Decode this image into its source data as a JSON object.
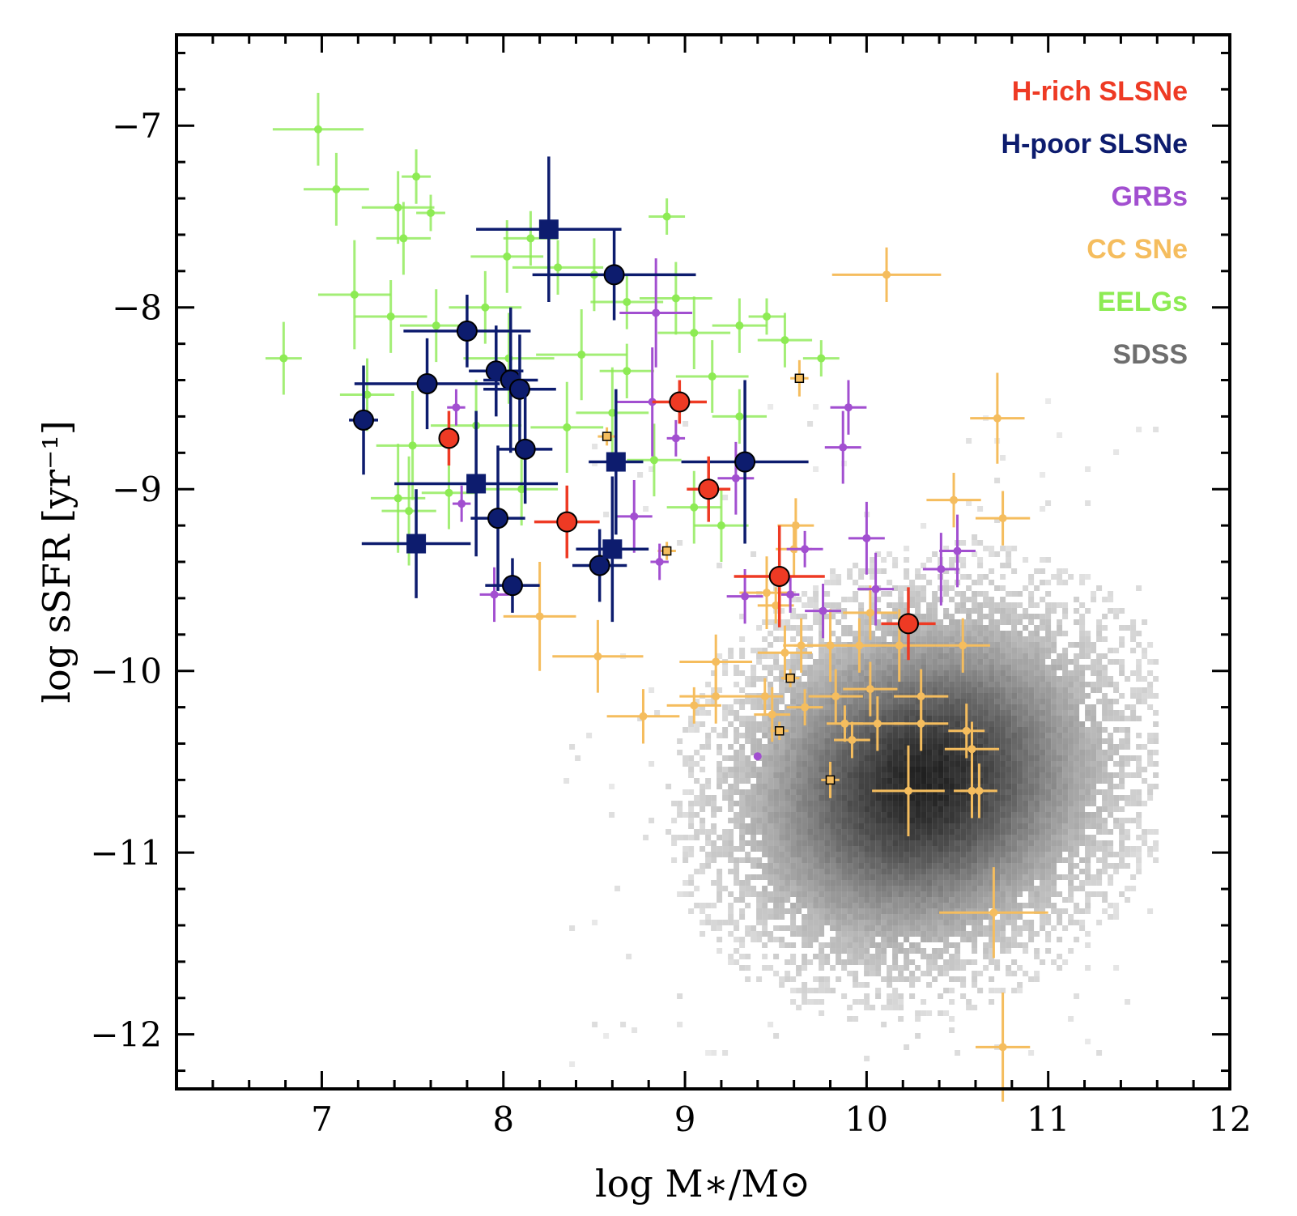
{
  "chart_data": {
    "type": "scatter",
    "xlabel": "log M∗/M⊙",
    "ylabel": "log sSFR [yr⁻¹]",
    "xlim": [
      6.2,
      12.0
    ],
    "ylim": [
      -12.3,
      -6.5
    ],
    "xticks": [
      "7",
      "8",
      "9",
      "10",
      "11",
      "12"
    ],
    "yticks": [
      "−7",
      "−8",
      "−9",
      "−10",
      "−11",
      "−12"
    ],
    "xtick_values": [
      7,
      8,
      9,
      10,
      11,
      12
    ],
    "ytick_values": [
      -7,
      -8,
      -9,
      -10,
      -11,
      -12
    ],
    "grid": false,
    "legend_placement": "top-right",
    "legend": [
      "H-rich SLSNe",
      "H-poor SLSNe",
      "GRBs",
      "CC SNe",
      "EELGs",
      "SDSS"
    ],
    "colors": {
      "H-rich SLSNe": "#ee3a24",
      "H-poor SLSNe": "#0d1c6e",
      "GRBs": "#a24fd0",
      "CC SNe": "#f5bd5e",
      "EELGs": "#8deb54",
      "SDSS": "#6e6e6e"
    },
    "sdss_density": {
      "description_values": "2D density of SDSS galaxies",
      "center_x": 10.3,
      "center_y": -10.6,
      "spread_x": 0.55,
      "spread_y": 0.55,
      "x_range": [
        8.3,
        11.6
      ],
      "y_range": [
        -12.2,
        -8.5
      ]
    },
    "series": [
      {
        "name": "H-rich SLSNe",
        "marker": "circle",
        "points": [
          [
            7.7,
            -8.72,
            0.05,
            0.15
          ],
          [
            8.35,
            -9.18,
            0.18,
            0.2
          ],
          [
            8.97,
            -8.52,
            0.15,
            0.12
          ],
          [
            9.13,
            -9.0,
            0.12,
            0.18
          ],
          [
            9.52,
            -9.48,
            0.25,
            0.28
          ],
          [
            10.23,
            -9.74,
            0.15,
            0.2
          ]
        ]
      },
      {
        "name": "H-poor SLSNe",
        "marker": "circle",
        "points": [
          [
            7.23,
            -8.62,
            0.08,
            0.3
          ],
          [
            7.58,
            -8.42,
            0.4,
            0.25
          ],
          [
            7.8,
            -8.13,
            0.35,
            0.2
          ],
          [
            7.96,
            -8.35,
            0.15,
            0.25
          ],
          [
            8.04,
            -8.4,
            0.15,
            0.4
          ],
          [
            8.09,
            -8.45,
            0.2,
            0.3
          ],
          [
            8.12,
            -8.78,
            0.15,
            0.3
          ],
          [
            7.97,
            -9.16,
            0.15,
            0.4
          ],
          [
            8.05,
            -9.53,
            0.15,
            0.15
          ],
          [
            8.53,
            -9.42,
            0.15,
            0.2
          ],
          [
            8.61,
            -7.82,
            0.45,
            0.25
          ],
          [
            9.33,
            -8.85,
            0.35,
            0.45
          ]
        ]
      },
      {
        "name": "H-poor SLSNe (squares)",
        "marker": "square",
        "points": [
          [
            8.25,
            -7.57,
            0.4,
            0.4
          ],
          [
            7.52,
            -9.3,
            0.3,
            0.3
          ],
          [
            7.85,
            -8.97,
            0.45,
            0.4
          ],
          [
            8.62,
            -8.85,
            0.15,
            0.4
          ],
          [
            8.6,
            -9.33,
            0.2,
            0.4
          ]
        ]
      },
      {
        "name": "GRBs",
        "marker": "circle",
        "points": [
          [
            7.74,
            -8.55,
            0.05,
            0.1
          ],
          [
            7.77,
            -9.08,
            0.05,
            0.1
          ],
          [
            7.95,
            -9.58,
            0.08,
            0.15
          ],
          [
            8.72,
            -9.15,
            0.1,
            0.2
          ],
          [
            8.82,
            -8.52,
            0.2,
            0.3
          ],
          [
            8.84,
            -8.03,
            0.2,
            0.3
          ],
          [
            8.86,
            -9.4,
            0.05,
            0.1
          ],
          [
            8.95,
            -8.72,
            0.05,
            0.1
          ],
          [
            9.28,
            -8.94,
            0.1,
            0.2
          ],
          [
            9.33,
            -9.59,
            0.1,
            0.15
          ],
          [
            9.4,
            -10.47,
            0.0,
            0.0
          ],
          [
            9.58,
            -9.58,
            0.05,
            0.1
          ],
          [
            9.66,
            -9.33,
            0.1,
            0.1
          ],
          [
            9.76,
            -9.67,
            0.1,
            0.15
          ],
          [
            9.9,
            -8.55,
            0.1,
            0.15
          ],
          [
            10.0,
            -9.27,
            0.1,
            0.2
          ],
          [
            10.05,
            -9.55,
            0.1,
            0.2
          ],
          [
            10.41,
            -9.44,
            0.1,
            0.2
          ],
          [
            10.5,
            -9.34,
            0.1,
            0.2
          ],
          [
            9.87,
            -8.77,
            0.1,
            0.2
          ]
        ]
      },
      {
        "name": "CC SNe",
        "marker": "circle",
        "points": [
          [
            10.11,
            -7.82,
            0.3,
            0.15
          ],
          [
            10.72,
            -8.61,
            0.15,
            0.25
          ],
          [
            10.48,
            -9.06,
            0.15,
            0.15
          ],
          [
            10.75,
            -9.16,
            0.15,
            0.15
          ],
          [
            8.2,
            -9.7,
            0.2,
            0.3
          ],
          [
            8.52,
            -9.92,
            0.25,
            0.2
          ],
          [
            8.77,
            -10.25,
            0.2,
            0.15
          ],
          [
            9.17,
            -9.95,
            0.2,
            0.15
          ],
          [
            9.17,
            -10.14,
            0.2,
            0.15
          ],
          [
            9.45,
            -9.57,
            0.15,
            0.2
          ],
          [
            9.5,
            -9.64,
            0.1,
            0.1
          ],
          [
            9.55,
            -9.9,
            0.15,
            0.15
          ],
          [
            9.6,
            -9.33,
            0.1,
            0.15
          ],
          [
            9.61,
            -9.2,
            0.1,
            0.15
          ],
          [
            9.64,
            -9.86,
            0.1,
            0.15
          ],
          [
            9.66,
            -10.2,
            0.1,
            0.1
          ],
          [
            9.8,
            -9.86,
            0.2,
            0.2
          ],
          [
            9.83,
            -10.14,
            0.15,
            0.15
          ],
          [
            9.88,
            -10.29,
            0.1,
            0.1
          ],
          [
            9.92,
            -10.38,
            0.1,
            0.1
          ],
          [
            9.96,
            -9.86,
            0.1,
            0.15
          ],
          [
            10.02,
            -10.1,
            0.15,
            0.15
          ],
          [
            10.02,
            -9.68,
            0.15,
            0.15
          ],
          [
            10.06,
            -10.29,
            0.15,
            0.15
          ],
          [
            10.18,
            -9.86,
            0.2,
            0.2
          ],
          [
            10.3,
            -10.14,
            0.15,
            0.15
          ],
          [
            10.3,
            -10.29,
            0.15,
            0.15
          ],
          [
            10.23,
            -10.66,
            0.2,
            0.25
          ],
          [
            10.53,
            -9.86,
            0.15,
            0.15
          ],
          [
            10.55,
            -10.33,
            0.1,
            0.15
          ],
          [
            10.58,
            -10.43,
            0.15,
            0.15
          ],
          [
            10.58,
            -10.66,
            0.1,
            0.15
          ],
          [
            10.62,
            -10.66,
            0.1,
            0.15
          ],
          [
            10.7,
            -11.33,
            0.3,
            0.25
          ],
          [
            10.75,
            -12.07,
            0.15,
            0.3
          ],
          [
            9.05,
            -10.19,
            0.15,
            0.1
          ],
          [
            9.44,
            -10.14,
            0.1,
            0.1
          ],
          [
            9.48,
            -10.24,
            0.1,
            0.15
          ]
        ]
      },
      {
        "name": "CC SNe (squares)",
        "marker": "square",
        "points": [
          [
            8.57,
            -8.71,
            0.05,
            0.05
          ],
          [
            8.9,
            -9.34,
            0.05,
            0.05
          ],
          [
            9.52,
            -10.33,
            0.05,
            0.05
          ],
          [
            9.58,
            -10.04,
            0.05,
            0.05
          ],
          [
            9.63,
            -8.39,
            0.05,
            0.1
          ],
          [
            9.8,
            -10.6,
            0.05,
            0.1
          ]
        ]
      },
      {
        "name": "EELGs",
        "marker": "circle",
        "points": [
          [
            6.98,
            -7.02,
            0.25,
            0.2
          ],
          [
            7.08,
            -7.35,
            0.18,
            0.2
          ],
          [
            6.79,
            -8.28,
            0.1,
            0.2
          ],
          [
            7.18,
            -7.93,
            0.2,
            0.3
          ],
          [
            7.42,
            -7.45,
            0.2,
            0.2
          ],
          [
            7.52,
            -7.28,
            0.08,
            0.15
          ],
          [
            7.45,
            -7.62,
            0.15,
            0.2
          ],
          [
            7.6,
            -7.48,
            0.08,
            0.1
          ],
          [
            7.38,
            -8.05,
            0.2,
            0.2
          ],
          [
            7.63,
            -8.1,
            0.2,
            0.2
          ],
          [
            7.9,
            -8.0,
            0.2,
            0.2
          ],
          [
            7.5,
            -8.76,
            0.2,
            0.3
          ],
          [
            7.42,
            -9.05,
            0.15,
            0.3
          ],
          [
            7.48,
            -9.12,
            0.15,
            0.3
          ],
          [
            7.7,
            -9.02,
            0.15,
            0.2
          ],
          [
            8.02,
            -7.72,
            0.2,
            0.2
          ],
          [
            8.15,
            -7.62,
            0.15,
            0.15
          ],
          [
            8.3,
            -7.78,
            0.25,
            0.15
          ],
          [
            8.5,
            -7.82,
            0.2,
            0.2
          ],
          [
            8.43,
            -8.26,
            0.25,
            0.25
          ],
          [
            8.68,
            -7.97,
            0.2,
            0.15
          ],
          [
            8.9,
            -7.5,
            0.1,
            0.1
          ],
          [
            8.95,
            -7.95,
            0.2,
            0.2
          ],
          [
            9.05,
            -8.14,
            0.2,
            0.2
          ],
          [
            9.15,
            -8.38,
            0.2,
            0.2
          ],
          [
            9.3,
            -8.1,
            0.15,
            0.15
          ],
          [
            9.45,
            -8.05,
            0.1,
            0.1
          ],
          [
            9.55,
            -8.18,
            0.15,
            0.15
          ],
          [
            9.75,
            -8.28,
            0.1,
            0.1
          ],
          [
            8.35,
            -8.66,
            0.2,
            0.25
          ],
          [
            8.6,
            -8.58,
            0.2,
            0.25
          ],
          [
            8.83,
            -8.84,
            0.15,
            0.2
          ],
          [
            9.05,
            -9.1,
            0.15,
            0.2
          ],
          [
            8.1,
            -9.0,
            0.2,
            0.2
          ],
          [
            7.85,
            -8.65,
            0.25,
            0.25
          ],
          [
            8.03,
            -8.28,
            0.25,
            0.25
          ],
          [
            8.68,
            -8.35,
            0.15,
            0.15
          ],
          [
            9.3,
            -8.6,
            0.15,
            0.15
          ],
          [
            9.2,
            -9.2,
            0.15,
            0.2
          ],
          [
            7.25,
            -8.48,
            0.15,
            0.2
          ]
        ]
      }
    ]
  }
}
